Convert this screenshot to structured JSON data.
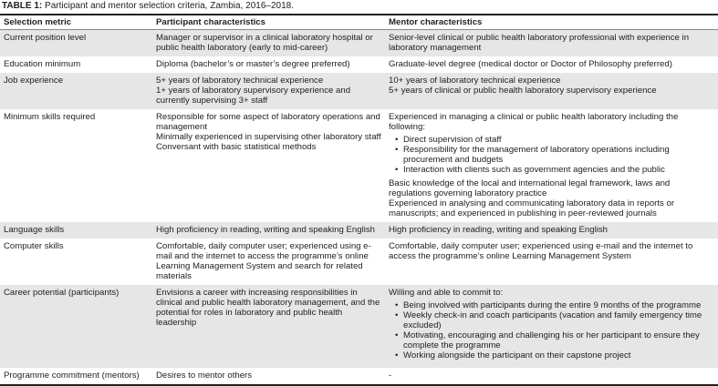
{
  "caption": {
    "label": "TABLE 1:",
    "text": " Participant and mentor selection criteria, Zambia, 2016–2018."
  },
  "headers": [
    "Selection metric",
    "Participant characteristics",
    "Mentor characteristics"
  ],
  "rows": [
    {
      "metric": "Current position level",
      "participant": [
        "Manager or supervisor in a clinical laboratory hospital or public health laboratory (early to mid-career)"
      ],
      "mentor": [
        "Senior-level clinical or public health laboratory professional with experience in laboratory management"
      ]
    },
    {
      "metric": "Education minimum",
      "participant": [
        "Diploma (bachelor’s or master’s degree preferred)"
      ],
      "mentor": [
        "Graduate-level degree (medical doctor or Doctor of Philosophy preferred)"
      ]
    },
    {
      "metric": "Job experience",
      "participant": [
        "5+ years of laboratory technical experience",
        "1+ years of laboratory supervisory experience and currently supervising 3+ staff"
      ],
      "mentor": [
        "10+ years of laboratory technical experience",
        "5+ years of clinical or public health laboratory supervisory experience"
      ]
    },
    {
      "metric": "Minimum skills required",
      "participant": [
        "Responsible for some aspect of laboratory operations and management",
        "Minimally experienced in supervising other laboratory  staff",
        "Conversant with basic statistical methods"
      ],
      "mentor_intro": "Experienced in managing a clinical or public health laboratory including the following:",
      "mentor_bullets": [
        "Direct supervision of staff",
        "Responsibility for the management of laboratory operations including procurement and budgets",
        "Interaction with clients such as government agencies and the public"
      ],
      "mentor": [
        "Basic knowledge of the local and international legal framework, laws and regulations governing laboratory practice",
        "Experienced in analysing and communicating laboratory data in reports or manuscripts; and experienced in publishing in peer-reviewed journals"
      ]
    },
    {
      "metric": "Language skills",
      "participant": [
        "High proficiency in reading, writing and speaking English"
      ],
      "mentor": [
        "High proficiency in reading, writing and speaking English"
      ]
    },
    {
      "metric": "Computer skills",
      "participant": [
        "Comfortable, daily computer user; experienced using e-mail and the internet to access the programme’s online Learning Management System and search for related materials"
      ],
      "mentor": [
        "Comfortable, daily computer user; experienced using e-mail and the internet to access the programme’s online Learning Management System"
      ]
    },
    {
      "metric": "Career potential (participants)",
      "participant": [
        "Envisions a career with increasing responsibilities in clinical and public health laboratory management, and the potential for roles in laboratory and public health leadership"
      ],
      "mentor_intro": "Willing and able to commit to:",
      "mentor_bullets": [
        "Being involved with participants during the entire 9 months of the programme",
        "Weekly check-in and coach participants (vacation and family emergency time excluded)",
        "Motivating, encouraging and challenging his or her participant to ensure they complete the programme",
        "Working alongside the participant on their capstone project"
      ]
    },
    {
      "metric": "Programme commitment (mentors)",
      "participant": [
        "Desires to mentor others"
      ],
      "mentor": [
        "-"
      ]
    }
  ]
}
